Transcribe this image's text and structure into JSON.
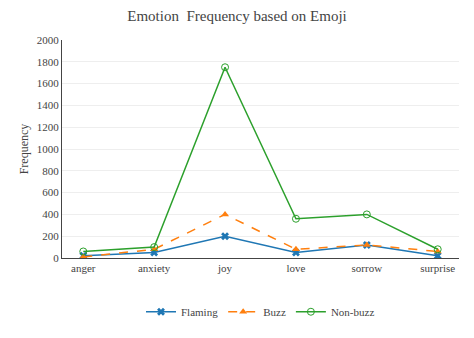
{
  "chart_data": {
    "type": "line",
    "title": "Emotion  Frequency based on Emoji",
    "ylabel": "Frequency",
    "categories": [
      "anger",
      "anxiety",
      "joy",
      "love",
      "sorrow",
      "surprise"
    ],
    "series": [
      {
        "name": "Flaming",
        "values": [
          20,
          50,
          200,
          50,
          120,
          20
        ],
        "marker": "x",
        "line_style": "solid"
      },
      {
        "name": "Buzz",
        "values": [
          10,
          80,
          400,
          80,
          120,
          60
        ],
        "marker": "triangle-up",
        "line_style": "dash"
      },
      {
        "name": "Non-buzz",
        "values": [
          60,
          100,
          1750,
          360,
          400,
          80
        ],
        "marker": "circle-open",
        "line_style": "solid"
      }
    ],
    "ylim": [
      0,
      2000
    ],
    "yticks": [
      0,
      200,
      400,
      600,
      800,
      1000,
      1200,
      1400,
      1600,
      1800,
      2000
    ],
    "grid": true,
    "legend": "bottom"
  }
}
